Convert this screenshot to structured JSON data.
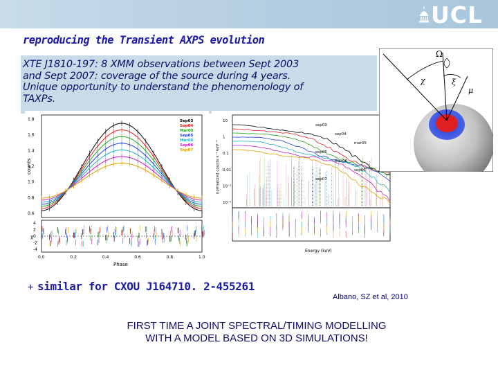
{
  "header": {
    "logo_text": "UCL",
    "bar_color": "#b4cde0"
  },
  "slide": {
    "title": "reproducing the Transient AXPS evolution",
    "intro_lines": [
      "XTE J1810-197:  8 XMM observations between Sept 2003",
      "and Sept 2007: coverage of the source during 4 years.",
      "Unique opportunity to understand the phenomenology of",
      "TAXPs."
    ],
    "similar_bullet": "+",
    "similar_text": "similar for CXOU J164710. 2-455261",
    "citation": "Albano, SZ et al,  2010",
    "conclusion_lines": [
      "FIRST TIME A JOINT SPECTRAL/TIMING MODELLING",
      "WITH A MODEL BASED  ON 3D SIMULATIONS!"
    ],
    "text_color": "#0c0c6a",
    "accent_color": "#1a1aa6"
  },
  "pulse_profile_figure": {
    "xlabel": "Phase",
    "ylabel": "counts",
    "residual_ylabel": "χ",
    "x_ticks": [
      "0.0",
      "0.2",
      "0.4",
      "0.6",
      "0.8",
      "1.0"
    ],
    "y_ticks": [
      "1.8",
      "1.6",
      "1.4",
      "1.2",
      "1.0",
      "0.8",
      "0.6"
    ],
    "resid_ticks": [
      "4",
      "2",
      "0",
      "-2",
      "-4"
    ],
    "legend": [
      {
        "label": "Sep03",
        "color": "#000000"
      },
      {
        "label": "Sep04",
        "color": "#e02020"
      },
      {
        "label": "Mar05",
        "color": "#20a020"
      },
      {
        "label": "Sep05",
        "color": "#2040e0"
      },
      {
        "label": "Mar06",
        "color": "#20b0c0"
      },
      {
        "label": "Sep06",
        "color": "#c020c0"
      },
      {
        "label": "Sep07",
        "color": "#e0a000"
      }
    ]
  },
  "spectrum_figure": {
    "xlabel": "Energy (keV)",
    "ylabel": "normalized counts s⁻¹ keV⁻¹",
    "y_ticks": [
      "10",
      "1",
      "0.1",
      "0.01",
      "10⁻³",
      "10⁻⁴"
    ],
    "labels": [
      "sep03",
      "sep04",
      "mar05",
      "sep05",
      "mar06",
      "sep06",
      "sep07"
    ]
  },
  "geometry_figure": {
    "labels": [
      "Ω",
      "χ",
      "ξ",
      "μ"
    ]
  }
}
